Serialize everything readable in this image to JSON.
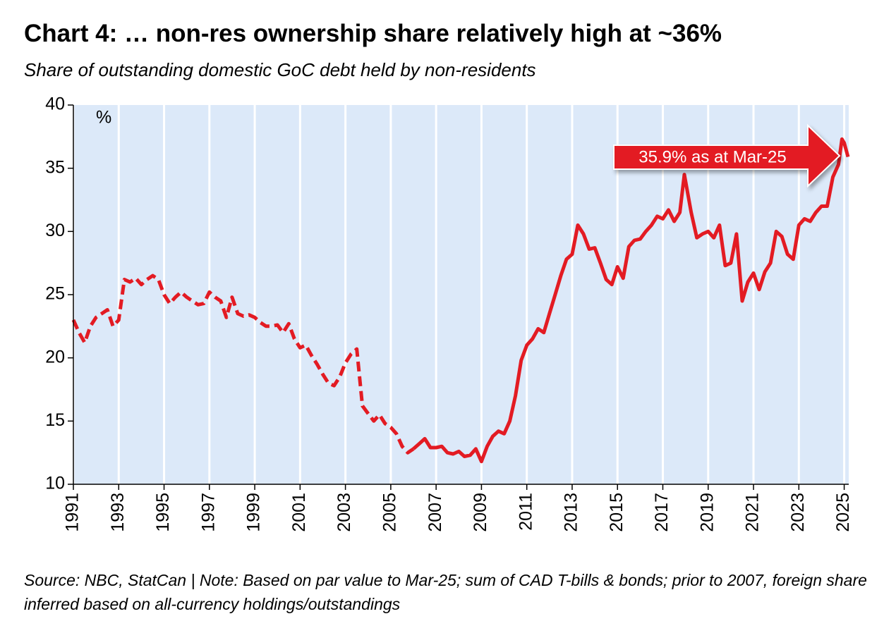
{
  "chart_data": {
    "type": "line",
    "title": "Chart 4: … non-res ownership share relatively high at ~36%",
    "subtitle": "Share of outstanding domestic GoC debt held by non-residents",
    "y_unit": "%",
    "annotation": "35.9% as at Mar-25",
    "source": "Source: NBC, StatCan | Note: Based on par value to Mar-25; sum of CAD T-bills & bonds; prior to 2007, foreign share inferred based on all-currency holdings/outstandings",
    "xlim": [
      1991,
      2025.2
    ],
    "xticks": [
      1991,
      1993,
      1995,
      1997,
      1999,
      2001,
      2003,
      2005,
      2007,
      2009,
      2011,
      2013,
      2015,
      2017,
      2019,
      2021,
      2023,
      2025
    ],
    "ylim": [
      10,
      40
    ],
    "yticks": [
      10,
      15,
      20,
      25,
      30,
      35,
      40
    ],
    "grid": true,
    "background": "#dce9f9",
    "series": [
      {
        "color": "#e31b23",
        "style": "dashed",
        "x": [
          1991.0,
          1991.25,
          1991.5,
          1991.75,
          1992.0,
          1992.25,
          1992.5,
          1992.75,
          1993.0,
          1993.25,
          1993.5,
          1993.75,
          1994.0,
          1994.25,
          1994.5,
          1994.75,
          1995.0,
          1995.25,
          1995.5,
          1995.75,
          1996.0,
          1996.25,
          1996.5,
          1996.75,
          1997.0,
          1997.25,
          1997.5,
          1997.75,
          1998.0,
          1998.25,
          1998.5,
          1998.75,
          1999.0,
          1999.25,
          1999.5,
          1999.75,
          2000.0,
          2000.25,
          2000.5,
          2000.75,
          2001.0,
          2001.25,
          2001.5,
          2001.75,
          2002.0,
          2002.25,
          2002.5,
          2002.75,
          2003.0,
          2003.25,
          2003.5,
          2003.75,
          2004.0,
          2004.25,
          2004.5,
          2004.75,
          2005.0,
          2005.25,
          2005.5,
          2005.75,
          2006.0
        ],
        "values": [
          23.0,
          22.0,
          21.2,
          22.5,
          23.2,
          23.5,
          23.8,
          22.5,
          23.0,
          26.2,
          26.0,
          26.3,
          25.8,
          26.2,
          26.5,
          26.2,
          25.0,
          24.3,
          24.8,
          25.2,
          24.8,
          24.5,
          24.2,
          24.3,
          25.2,
          24.8,
          24.5,
          23.2,
          24.8,
          23.5,
          23.3,
          23.4,
          23.2,
          22.8,
          22.5,
          22.5,
          22.6,
          22.0,
          22.7,
          21.5,
          20.8,
          21.0,
          20.2,
          19.5,
          18.7,
          18.0,
          17.8,
          18.5,
          19.6,
          20.3,
          20.7,
          16.2,
          15.6,
          15.0,
          15.5,
          14.8,
          14.5,
          14.0,
          13.0,
          12.5,
          12.8
        ]
      },
      {
        "color": "#e31b23",
        "style": "solid",
        "x": [
          2006.0,
          2006.25,
          2006.5,
          2006.75,
          2007.0,
          2007.25,
          2007.5,
          2007.75,
          2008.0,
          2008.25,
          2008.5,
          2008.75,
          2009.0,
          2009.25,
          2009.5,
          2009.75,
          2010.0,
          2010.25,
          2010.5,
          2010.75,
          2011.0,
          2011.25,
          2011.5,
          2011.75,
          2012.0,
          2012.25,
          2012.5,
          2012.75,
          2013.0,
          2013.25,
          2013.5,
          2013.75,
          2014.0,
          2014.25,
          2014.5,
          2014.75,
          2015.0,
          2015.25,
          2015.5,
          2015.75,
          2016.0,
          2016.25,
          2016.5,
          2016.75,
          2017.0,
          2017.25,
          2017.5,
          2017.75,
          2017.95,
          2018.25,
          2018.5,
          2018.75,
          2019.0,
          2019.25,
          2019.5,
          2019.75,
          2020.0,
          2020.25,
          2020.5,
          2020.75,
          2021.0,
          2021.25,
          2021.5,
          2021.75,
          2022.0,
          2022.25,
          2022.5,
          2022.75,
          2023.0,
          2023.25,
          2023.5,
          2023.75,
          2024.0,
          2024.25,
          2024.5,
          2024.75,
          2024.9,
          2025.0,
          2025.17
        ],
        "values": [
          12.8,
          13.2,
          13.6,
          12.9,
          12.9,
          13.0,
          12.5,
          12.4,
          12.6,
          12.2,
          12.3,
          12.8,
          11.8,
          13.0,
          13.8,
          14.2,
          14.0,
          15.0,
          17.0,
          19.8,
          21.0,
          21.5,
          22.3,
          22.0,
          23.5,
          25.0,
          26.5,
          27.8,
          28.2,
          30.5,
          29.8,
          28.6,
          28.7,
          27.5,
          26.2,
          25.8,
          27.2,
          26.3,
          28.8,
          29.3,
          29.4,
          30.0,
          30.5,
          31.2,
          31.0,
          31.7,
          30.8,
          31.5,
          34.5,
          31.5,
          29.5,
          29.8,
          30.0,
          29.5,
          30.5,
          27.3,
          27.5,
          29.8,
          24.5,
          26.0,
          26.7,
          25.4,
          26.8,
          27.5,
          30.0,
          29.6,
          28.2,
          27.8,
          30.5,
          31.0,
          30.8,
          31.5,
          32.0,
          32.0,
          34.3,
          35.3,
          37.3,
          37.0,
          35.9
        ]
      }
    ]
  }
}
